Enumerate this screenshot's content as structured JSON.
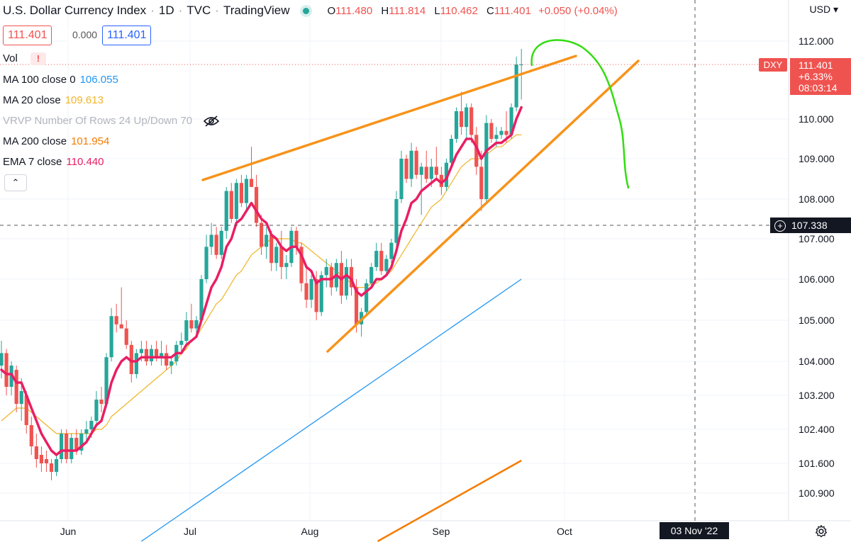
{
  "header": {
    "title": "U.S. Dollar Currency Index",
    "interval": "1D",
    "source": "TVC",
    "platform": "TradingView",
    "ohlc": {
      "o_label": "O",
      "o": "111.480",
      "h_label": "H",
      "h": "111.814",
      "l_label": "L",
      "l": "110.462",
      "c_label": "C",
      "c": "111.401",
      "change": "+0.050 (+0.04%)"
    }
  },
  "price_boxes": {
    "bid": "111.401",
    "spread": "0.000",
    "ask": "111.401"
  },
  "indicators": {
    "vol": {
      "label": "Vol",
      "warn": "!"
    },
    "ma100": {
      "label": "MA 100 close 0",
      "value": "106.055",
      "color": "#2196f3"
    },
    "ma20": {
      "label": "MA 20 close",
      "value": "109.613",
      "color": "#f0b429"
    },
    "vrvp": {
      "label": "VRVP Number Of Rows 24 Up/Down 70"
    },
    "ma200": {
      "label": "MA 200 close",
      "value": "101.954",
      "color": "#f57c00"
    },
    "ema7": {
      "label": "EMA 7 close",
      "value": "110.440",
      "color": "#e91e63"
    },
    "collapse": "⌃"
  },
  "axis": {
    "unit": "USD",
    "y_ticks": [
      "112.000",
      "110.000",
      "109.000",
      "108.000",
      "107.000",
      "106.000",
      "105.000",
      "104.000",
      "103.200",
      "102.400",
      "101.600",
      "100.900"
    ],
    "x_ticks": [
      "Jun",
      "Jul",
      "Aug",
      "Sep",
      "Oct"
    ]
  },
  "tags": {
    "symbol": "DXY",
    "last": "111.401",
    "pct": "+6.33%",
    "countdown": "08:03:14",
    "crosshair_price": "107.338",
    "crosshair_date": "03 Nov '22",
    "crosshair_plus": "+"
  },
  "colors": {
    "up": "#26a69a",
    "down": "#ef5350",
    "trend": "#f7931a",
    "drawing": "#33dd11"
  },
  "chart_data": {
    "type": "candlestick",
    "y_axis_unit": "USD",
    "candles": [
      {
        "o": 103.9,
        "h": 104.5,
        "l": 103.6,
        "c": 104.2
      },
      {
        "o": 104.2,
        "h": 104.3,
        "l": 103.2,
        "c": 103.4
      },
      {
        "o": 103.4,
        "h": 104.0,
        "l": 103.2,
        "c": 103.9
      },
      {
        "o": 103.8,
        "h": 103.9,
        "l": 102.8,
        "c": 103.0
      },
      {
        "o": 103.0,
        "h": 103.6,
        "l": 102.6,
        "c": 103.3
      },
      {
        "o": 103.2,
        "h": 103.3,
        "l": 102.3,
        "c": 102.5
      },
      {
        "o": 102.5,
        "h": 102.7,
        "l": 101.8,
        "c": 102.0
      },
      {
        "o": 102.0,
        "h": 102.3,
        "l": 101.5,
        "c": 101.7
      },
      {
        "o": 101.8,
        "h": 102.0,
        "l": 101.4,
        "c": 101.6
      },
      {
        "o": 101.7,
        "h": 101.9,
        "l": 101.4,
        "c": 101.6
      },
      {
        "o": 101.6,
        "h": 101.7,
        "l": 101.2,
        "c": 101.4
      },
      {
        "o": 101.4,
        "h": 101.8,
        "l": 101.3,
        "c": 101.7
      },
      {
        "o": 101.7,
        "h": 102.4,
        "l": 101.6,
        "c": 102.3
      },
      {
        "o": 102.3,
        "h": 102.4,
        "l": 101.6,
        "c": 101.7
      },
      {
        "o": 101.7,
        "h": 102.3,
        "l": 101.6,
        "c": 102.2
      },
      {
        "o": 102.2,
        "h": 102.4,
        "l": 101.8,
        "c": 101.9
      },
      {
        "o": 101.9,
        "h": 102.4,
        "l": 101.8,
        "c": 102.3
      },
      {
        "o": 102.3,
        "h": 102.6,
        "l": 102.1,
        "c": 102.4
      },
      {
        "o": 102.4,
        "h": 102.7,
        "l": 102.2,
        "c": 102.6
      },
      {
        "o": 102.6,
        "h": 103.3,
        "l": 102.5,
        "c": 103.1
      },
      {
        "o": 103.1,
        "h": 103.4,
        "l": 102.8,
        "c": 103.0
      },
      {
        "o": 103.0,
        "h": 104.2,
        "l": 102.9,
        "c": 104.1
      },
      {
        "o": 104.1,
        "h": 105.3,
        "l": 104.0,
        "c": 105.1
      },
      {
        "o": 105.1,
        "h": 105.4,
        "l": 104.7,
        "c": 104.9
      },
      {
        "o": 104.9,
        "h": 105.8,
        "l": 104.8,
        "c": 104.8
      },
      {
        "o": 104.8,
        "h": 105.0,
        "l": 104.3,
        "c": 104.4
      },
      {
        "o": 104.4,
        "h": 104.5,
        "l": 103.5,
        "c": 103.7
      },
      {
        "o": 103.7,
        "h": 104.3,
        "l": 103.6,
        "c": 104.2
      },
      {
        "o": 104.2,
        "h": 104.5,
        "l": 104.0,
        "c": 104.3
      },
      {
        "o": 104.3,
        "h": 104.5,
        "l": 103.9,
        "c": 104.0
      },
      {
        "o": 104.0,
        "h": 104.4,
        "l": 103.9,
        "c": 104.3
      },
      {
        "o": 104.3,
        "h": 104.5,
        "l": 104.0,
        "c": 104.1
      },
      {
        "o": 104.1,
        "h": 104.5,
        "l": 103.9,
        "c": 104.2
      },
      {
        "o": 104.2,
        "h": 104.4,
        "l": 103.8,
        "c": 103.9
      },
      {
        "o": 103.9,
        "h": 104.1,
        "l": 103.7,
        "c": 104.0
      },
      {
        "o": 104.0,
        "h": 104.5,
        "l": 103.9,
        "c": 104.4
      },
      {
        "o": 104.4,
        "h": 104.7,
        "l": 104.2,
        "c": 104.5
      },
      {
        "o": 104.5,
        "h": 105.2,
        "l": 104.4,
        "c": 105.0
      },
      {
        "o": 105.0,
        "h": 105.4,
        "l": 104.7,
        "c": 104.8
      },
      {
        "o": 104.8,
        "h": 105.1,
        "l": 104.6,
        "c": 105.0
      },
      {
        "o": 105.0,
        "h": 106.1,
        "l": 104.9,
        "c": 106.0
      },
      {
        "o": 106.0,
        "h": 107.1,
        "l": 105.9,
        "c": 106.8
      },
      {
        "o": 106.8,
        "h": 107.4,
        "l": 106.6,
        "c": 107.1
      },
      {
        "o": 107.1,
        "h": 107.3,
        "l": 106.5,
        "c": 106.6
      },
      {
        "o": 106.6,
        "h": 107.3,
        "l": 106.5,
        "c": 107.2
      },
      {
        "o": 107.2,
        "h": 108.3,
        "l": 107.0,
        "c": 108.2
      },
      {
        "o": 108.2,
        "h": 108.4,
        "l": 107.4,
        "c": 107.5
      },
      {
        "o": 107.5,
        "h": 108.5,
        "l": 107.4,
        "c": 108.4
      },
      {
        "o": 108.4,
        "h": 108.6,
        "l": 107.8,
        "c": 107.9
      },
      {
        "o": 107.9,
        "h": 108.6,
        "l": 107.7,
        "c": 108.5
      },
      {
        "o": 108.5,
        "h": 109.3,
        "l": 108.3,
        "c": 108.3
      },
      {
        "o": 108.3,
        "h": 108.6,
        "l": 107.3,
        "c": 107.4
      },
      {
        "o": 107.4,
        "h": 107.6,
        "l": 106.6,
        "c": 106.8
      },
      {
        "o": 106.8,
        "h": 107.3,
        "l": 106.5,
        "c": 107.1
      },
      {
        "o": 107.1,
        "h": 107.2,
        "l": 106.2,
        "c": 106.4
      },
      {
        "o": 106.4,
        "h": 106.9,
        "l": 106.2,
        "c": 106.8
      },
      {
        "o": 106.8,
        "h": 107.2,
        "l": 106.0,
        "c": 106.3
      },
      {
        "o": 106.3,
        "h": 106.6,
        "l": 106.0,
        "c": 106.4
      },
      {
        "o": 106.4,
        "h": 107.3,
        "l": 106.3,
        "c": 107.2
      },
      {
        "o": 107.2,
        "h": 107.3,
        "l": 106.6,
        "c": 106.8
      },
      {
        "o": 106.8,
        "h": 106.9,
        "l": 105.7,
        "c": 105.9
      },
      {
        "o": 105.9,
        "h": 106.3,
        "l": 105.3,
        "c": 105.5
      },
      {
        "o": 105.5,
        "h": 106.1,
        "l": 105.3,
        "c": 106.0
      },
      {
        "o": 106.0,
        "h": 106.2,
        "l": 105.0,
        "c": 105.2
      },
      {
        "o": 105.2,
        "h": 106.2,
        "l": 105.1,
        "c": 106.1
      },
      {
        "o": 106.1,
        "h": 106.5,
        "l": 105.8,
        "c": 106.3
      },
      {
        "o": 106.3,
        "h": 106.4,
        "l": 105.6,
        "c": 105.8
      },
      {
        "o": 105.8,
        "h": 106.5,
        "l": 105.7,
        "c": 106.4
      },
      {
        "o": 106.4,
        "h": 106.7,
        "l": 105.4,
        "c": 105.6
      },
      {
        "o": 105.6,
        "h": 106.5,
        "l": 105.5,
        "c": 106.3
      },
      {
        "o": 106.3,
        "h": 106.5,
        "l": 105.6,
        "c": 105.8
      },
      {
        "o": 105.8,
        "h": 106.0,
        "l": 104.7,
        "c": 104.9
      },
      {
        "o": 104.9,
        "h": 105.3,
        "l": 104.6,
        "c": 105.2
      },
      {
        "o": 105.2,
        "h": 106.0,
        "l": 105.1,
        "c": 105.9
      },
      {
        "o": 105.9,
        "h": 106.4,
        "l": 105.8,
        "c": 106.3
      },
      {
        "o": 106.3,
        "h": 106.9,
        "l": 106.2,
        "c": 106.7
      },
      {
        "o": 106.7,
        "h": 106.9,
        "l": 106.1,
        "c": 106.2
      },
      {
        "o": 106.2,
        "h": 106.6,
        "l": 106.1,
        "c": 106.5
      },
      {
        "o": 106.5,
        "h": 107.0,
        "l": 106.4,
        "c": 106.9
      },
      {
        "o": 106.9,
        "h": 108.2,
        "l": 106.8,
        "c": 108.0
      },
      {
        "o": 108.0,
        "h": 109.2,
        "l": 107.9,
        "c": 109.0
      },
      {
        "o": 109.0,
        "h": 109.1,
        "l": 108.4,
        "c": 108.5
      },
      {
        "o": 108.5,
        "h": 109.4,
        "l": 108.3,
        "c": 109.2
      },
      {
        "o": 109.2,
        "h": 109.3,
        "l": 108.5,
        "c": 108.6
      },
      {
        "o": 108.6,
        "h": 108.9,
        "l": 107.6,
        "c": 108.8
      },
      {
        "o": 108.8,
        "h": 109.2,
        "l": 108.4,
        "c": 108.5
      },
      {
        "o": 108.5,
        "h": 109.0,
        "l": 108.3,
        "c": 108.8
      },
      {
        "o": 108.8,
        "h": 109.3,
        "l": 108.5,
        "c": 108.6
      },
      {
        "o": 108.6,
        "h": 108.8,
        "l": 108.1,
        "c": 108.3
      },
      {
        "o": 108.3,
        "h": 109.0,
        "l": 108.2,
        "c": 108.9
      },
      {
        "o": 108.9,
        "h": 109.6,
        "l": 108.8,
        "c": 109.5
      },
      {
        "o": 109.5,
        "h": 110.3,
        "l": 109.4,
        "c": 110.2
      },
      {
        "o": 110.2,
        "h": 110.7,
        "l": 109.6,
        "c": 109.8
      },
      {
        "o": 109.8,
        "h": 110.4,
        "l": 109.5,
        "c": 110.3
      },
      {
        "o": 110.3,
        "h": 110.4,
        "l": 109.4,
        "c": 109.6
      },
      {
        "o": 109.6,
        "h": 109.8,
        "l": 108.6,
        "c": 108.8
      },
      {
        "o": 108.8,
        "h": 109.2,
        "l": 107.7,
        "c": 108.0
      },
      {
        "o": 108.0,
        "h": 110.1,
        "l": 107.9,
        "c": 109.9
      },
      {
        "o": 109.9,
        "h": 110.0,
        "l": 109.4,
        "c": 109.5
      },
      {
        "o": 109.5,
        "h": 109.8,
        "l": 109.3,
        "c": 109.6
      },
      {
        "o": 109.6,
        "h": 109.8,
        "l": 109.5,
        "c": 109.7
      },
      {
        "o": 109.7,
        "h": 110.2,
        "l": 109.4,
        "c": 109.6
      },
      {
        "o": 109.6,
        "h": 110.4,
        "l": 109.5,
        "c": 110.3
      },
      {
        "o": 110.3,
        "h": 111.6,
        "l": 110.2,
        "c": 111.4
      },
      {
        "o": 111.4,
        "h": 111.8,
        "l": 110.5,
        "c": 111.4
      }
    ],
    "ema7": [
      103.8,
      103.7,
      103.7,
      103.5,
      103.5,
      103.2,
      102.9,
      102.6,
      102.3,
      102.1,
      101.9,
      101.8,
      101.9,
      101.9,
      101.9,
      101.9,
      102.0,
      102.1,
      102.3,
      102.5,
      102.6,
      103.0,
      103.5,
      103.8,
      104.0,
      104.1,
      104.0,
      104.0,
      104.1,
      104.1,
      104.1,
      104.1,
      104.1,
      104.1,
      104.1,
      104.2,
      104.2,
      104.4,
      104.5,
      104.6,
      105.0,
      105.4,
      105.8,
      106.0,
      106.3,
      106.8,
      107.0,
      107.4,
      107.5,
      107.7,
      107.9,
      107.7,
      107.5,
      107.4,
      107.1,
      107.0,
      106.8,
      106.7,
      106.8,
      106.8,
      106.6,
      106.3,
      106.2,
      105.9,
      106.0,
      106.0,
      106.0,
      106.1,
      106.0,
      106.1,
      106.0,
      105.7,
      105.6,
      105.7,
      105.8,
      106.0,
      106.0,
      106.1,
      106.3,
      106.7,
      107.2,
      107.5,
      107.9,
      108.0,
      108.2,
      108.3,
      108.4,
      108.5,
      108.4,
      108.5,
      108.8,
      109.1,
      109.3,
      109.5,
      109.5,
      109.3,
      109.0,
      109.2,
      109.3,
      109.4,
      109.4,
      109.5,
      109.6,
      110.0,
      110.3
    ],
    "ma20": [
      102.6,
      102.7,
      102.8,
      102.9,
      102.9,
      102.9,
      102.8,
      102.7,
      102.6,
      102.5,
      102.4,
      102.3,
      102.3,
      102.3,
      102.3,
      102.3,
      102.3,
      102.3,
      102.3,
      102.4,
      102.4,
      102.5,
      102.7,
      102.8,
      102.9,
      103.0,
      103.1,
      103.2,
      103.3,
      103.4,
      103.5,
      103.6,
      103.7,
      103.8,
      103.9,
      104.0,
      104.2,
      104.3,
      104.5,
      104.6,
      104.8,
      105.0,
      105.2,
      105.4,
      105.5,
      105.7,
      105.9,
      106.1,
      106.2,
      106.4,
      106.6,
      106.7,
      106.8,
      106.9,
      107.0,
      107.0,
      107.0,
      107.0,
      107.0,
      106.9,
      106.9,
      106.8,
      106.7,
      106.6,
      106.5,
      106.4,
      106.3,
      106.2,
      106.1,
      106.0,
      105.9,
      105.8,
      105.8,
      105.8,
      105.9,
      105.9,
      106.0,
      106.1,
      106.2,
      106.4,
      106.6,
      106.8,
      107.0,
      107.2,
      107.4,
      107.6,
      107.8,
      107.9,
      108.0,
      108.2,
      108.4,
      108.6,
      108.8,
      108.9,
      109.0,
      109.0,
      109.0,
      109.1,
      109.2,
      109.3,
      109.3,
      109.4,
      109.5,
      109.6,
      109.6
    ],
    "ma100_segment": {
      "from": {
        "index": 28,
        "value": 100.4
      },
      "to": {
        "index": 104,
        "value": 106.0
      }
    },
    "ma200_segment": {
      "from": {
        "index": 71,
        "value": 100.4
      },
      "to": {
        "index": 104,
        "value": 101.9
      }
    }
  }
}
